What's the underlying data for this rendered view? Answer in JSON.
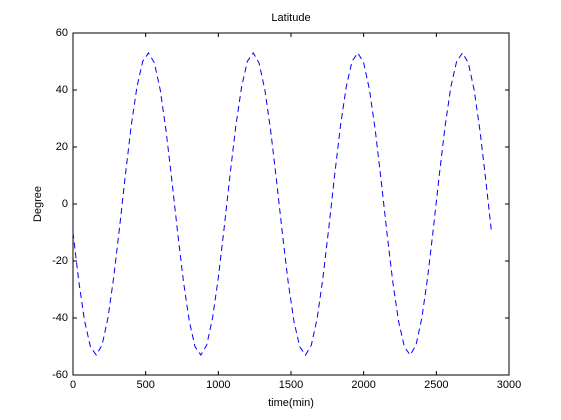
{
  "chart_data": {
    "type": "line",
    "title": "Latitude",
    "xlabel": "time(min)",
    "ylabel": "Degree",
    "x": [
      0,
      40,
      80,
      120,
      160,
      200,
      240,
      280,
      320,
      360,
      400,
      440,
      480,
      520,
      560,
      600,
      640,
      680,
      720,
      760,
      800,
      840,
      880,
      920,
      960,
      1000,
      1040,
      1080,
      1120,
      1160,
      1200,
      1240,
      1280,
      1320,
      1360,
      1400,
      1440,
      1480,
      1520,
      1560,
      1600,
      1640,
      1680,
      1720,
      1760,
      1800,
      1840,
      1880,
      1920,
      1960,
      2000,
      2040,
      2080,
      2120,
      2160,
      2200,
      2240,
      2280,
      2320,
      2360,
      2400,
      2440,
      2480,
      2520,
      2560,
      2600,
      2640,
      2680,
      2720,
      2760,
      2800,
      2840,
      2880
    ],
    "series": [
      {
        "name": "Latitude",
        "color": "#0000ff",
        "dashed": true,
        "values": [
          -10.0,
          -27.2,
          -41.1,
          -50.1,
          -53.0,
          -49.5,
          -40.1,
          -25.8,
          -8.4,
          10.0,
          27.2,
          41.1,
          50.1,
          53.0,
          49.5,
          40.1,
          25.8,
          8.4,
          -10.0,
          -27.2,
          -41.1,
          -50.1,
          -53.0,
          -49.5,
          -40.1,
          -25.8,
          -8.4,
          10.0,
          27.2,
          41.1,
          50.1,
          53.0,
          49.5,
          40.1,
          25.8,
          8.4,
          -10.0,
          -27.2,
          -41.1,
          -50.1,
          -53.0,
          -49.5,
          -40.1,
          -25.8,
          -8.4,
          10.0,
          27.2,
          41.1,
          50.1,
          53.0,
          49.5,
          40.1,
          25.8,
          8.4,
          -10.0,
          -27.2,
          -41.1,
          -50.1,
          -53.0,
          -49.5,
          -40.1,
          -25.8,
          -8.4,
          10.0,
          27.2,
          41.1,
          50.1,
          53.0,
          49.5,
          40.1,
          25.8,
          8.4,
          -10.0
        ]
      }
    ],
    "xlim": [
      0,
      3000
    ],
    "xticks": [
      0,
      500,
      1000,
      1500,
      2000,
      2500,
      3000
    ],
    "ylim": [
      -60,
      60
    ],
    "yticks": [
      -60,
      -40,
      -20,
      0,
      20,
      40,
      60
    ],
    "grid": false
  }
}
